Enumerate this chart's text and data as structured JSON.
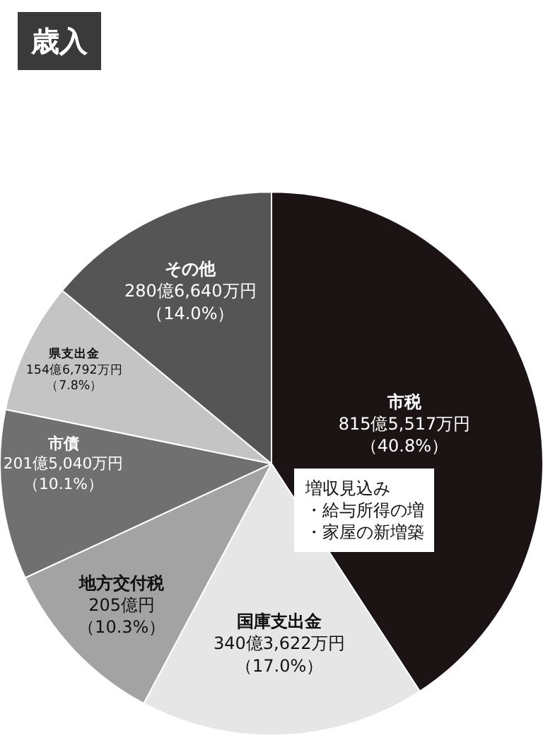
{
  "chart_data": {
    "type": "pie",
    "title": "歳入",
    "categories": [
      "市税",
      "国庫支出金",
      "地方交付税",
      "市債",
      "県支出金",
      "その他"
    ],
    "values": [
      40.8,
      17.0,
      10.3,
      10.1,
      7.8,
      14.0
    ],
    "value_labels": [
      "815億5,517万円（40.8%）",
      "340億3,622万円（17.0%）",
      "205億円（10.3%）",
      "201億5,040万円（10.1%）",
      "154億6,792万円（7.8%）",
      "280億6,640万円（14.0%）"
    ],
    "colors": [
      "#1c1414",
      "#e6e6e6",
      "#a3a3a3",
      "#707070",
      "#c4c4c4",
      "#555555"
    ],
    "annotations": [
      "増収見込み・給与所得の増・家屋の新増築"
    ],
    "legend": false
  }
}
